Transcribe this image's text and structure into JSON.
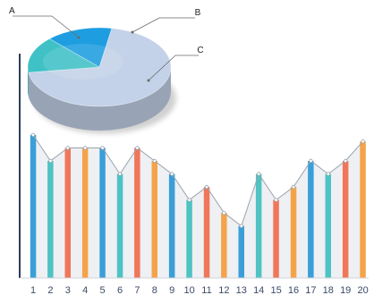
{
  "chart_data": [
    {
      "type": "bar",
      "categories": [
        "1",
        "2",
        "3",
        "4",
        "5",
        "6",
        "7",
        "8",
        "9",
        "10",
        "11",
        "12",
        "13",
        "14",
        "15",
        "16",
        "17",
        "18",
        "19",
        "20"
      ],
      "values": [
        11,
        9,
        10,
        10,
        10,
        8,
        10,
        9,
        8,
        6,
        7,
        5,
        4,
        8,
        6,
        7,
        9,
        8,
        9,
        10.5
      ],
      "ylim": [
        0,
        14.5
      ],
      "grid": false,
      "trend_line": true,
      "colors": [
        "#3a9fd8",
        "#4fc3c3",
        "#f0765a",
        "#f5a34a"
      ]
    },
    {
      "type": "pie",
      "style": "3d",
      "labels": [
        "A",
        "B",
        "C"
      ],
      "values": [
        70,
        15,
        15
      ],
      "colors": {
        "A": "#c3d2e8",
        "B": "#3fc1c6",
        "C": "#1e9ee0"
      }
    }
  ]
}
